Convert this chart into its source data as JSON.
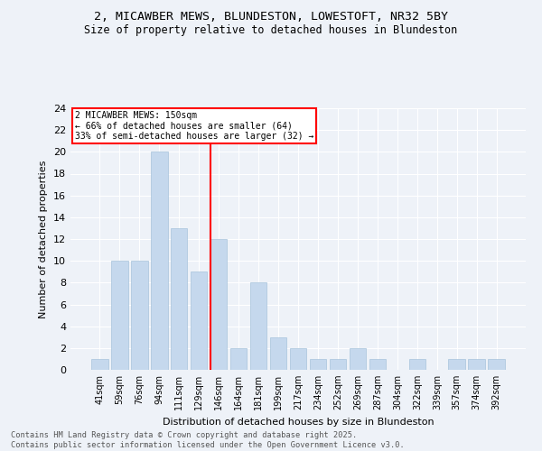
{
  "title1": "2, MICAWBER MEWS, BLUNDESTON, LOWESTOFT, NR32 5BY",
  "title2": "Size of property relative to detached houses in Blundeston",
  "xlabel": "Distribution of detached houses by size in Blundeston",
  "ylabel": "Number of detached properties",
  "categories": [
    "41sqm",
    "59sqm",
    "76sqm",
    "94sqm",
    "111sqm",
    "129sqm",
    "146sqm",
    "164sqm",
    "181sqm",
    "199sqm",
    "217sqm",
    "234sqm",
    "252sqm",
    "269sqm",
    "287sqm",
    "304sqm",
    "322sqm",
    "339sqm",
    "357sqm",
    "374sqm",
    "392sqm"
  ],
  "values": [
    1,
    10,
    10,
    20,
    13,
    9,
    12,
    2,
    8,
    3,
    2,
    1,
    1,
    2,
    1,
    0,
    1,
    0,
    1,
    1,
    1
  ],
  "bar_color": "#c5d8ed",
  "bar_edge_color": "#a8c4dc",
  "annotation_line_label": "2 MICAWBER MEWS: 150sqm",
  "annotation_pct_smaller": "← 66% of detached houses are smaller (64)",
  "annotation_pct_larger": "33% of semi-detached houses are larger (32) →",
  "ylim": [
    0,
    24
  ],
  "yticks": [
    0,
    2,
    4,
    6,
    8,
    10,
    12,
    14,
    16,
    18,
    20,
    22,
    24
  ],
  "footer_line1": "Contains HM Land Registry data © Crown copyright and database right 2025.",
  "footer_line2": "Contains public sector information licensed under the Open Government Licence v3.0.",
  "background_color": "#eef2f8",
  "grid_color": "#ffffff"
}
